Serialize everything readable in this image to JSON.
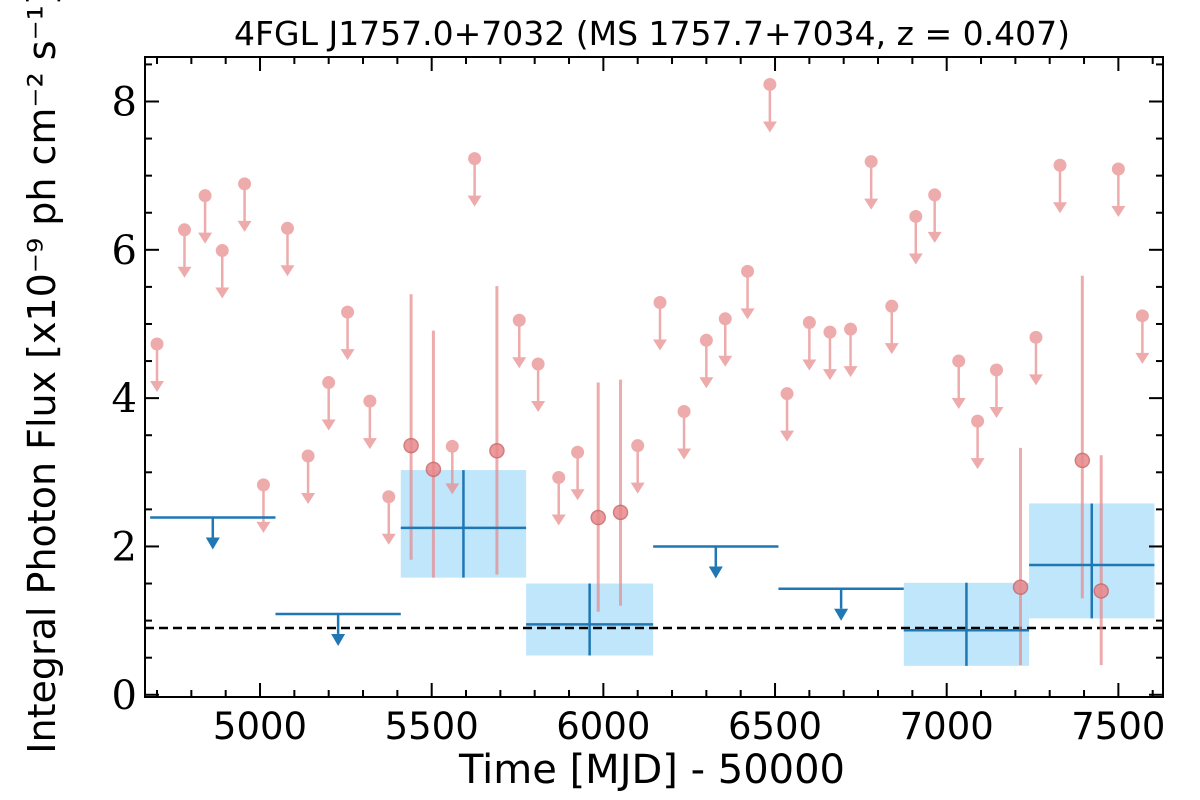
{
  "chart_data": {
    "type": "scatter",
    "title": "4FGL J1757.0+7032 (MS 1757.7+7034, z = 0.407)",
    "xlabel": "Time [MJD] - 50000",
    "ylabel": "Integral Photon Flux [x10⁻⁹ ph cm⁻² s⁻¹]",
    "xlim": [
      4665,
      7630
    ],
    "ylim": [
      -0.03,
      8.6
    ],
    "xticks": [
      5000,
      5500,
      6000,
      6500,
      7000,
      7500
    ],
    "xtick_labels": [
      "5000",
      "5500",
      "6000",
      "6500",
      "7000",
      "7500"
    ],
    "yticks": [
      0,
      2,
      4,
      6,
      8
    ],
    "ytick_labels": [
      "0",
      "2",
      "4",
      "6",
      "8"
    ],
    "reference_line_y": 0.9,
    "colors": {
      "monthly": "#e8888a",
      "binned": "#1f77b4",
      "band": "#bfe6fb",
      "reference": "#000000"
    },
    "series": [
      {
        "kind": "upper_limits",
        "points": [
          {
            "x": 4700,
            "y": 4.73
          },
          {
            "x": 4780,
            "y": 6.27
          },
          {
            "x": 4840,
            "y": 6.73
          },
          {
            "x": 4890,
            "y": 5.99
          },
          {
            "x": 4955,
            "y": 6.89
          },
          {
            "x": 5010,
            "y": 2.83
          },
          {
            "x": 5080,
            "y": 6.29
          },
          {
            "x": 5140,
            "y": 3.22
          },
          {
            "x": 5200,
            "y": 4.21
          },
          {
            "x": 5255,
            "y": 5.16
          },
          {
            "x": 5320,
            "y": 3.96
          },
          {
            "x": 5375,
            "y": 2.67
          },
          {
            "x": 5560,
            "y": 3.35
          },
          {
            "x": 5625,
            "y": 7.23
          },
          {
            "x": 5755,
            "y": 5.05
          },
          {
            "x": 5810,
            "y": 4.46
          },
          {
            "x": 5870,
            "y": 2.93
          },
          {
            "x": 5925,
            "y": 3.27
          },
          {
            "x": 6100,
            "y": 3.36
          },
          {
            "x": 6165,
            "y": 5.29
          },
          {
            "x": 6235,
            "y": 3.82
          },
          {
            "x": 6300,
            "y": 4.78
          },
          {
            "x": 6355,
            "y": 5.07
          },
          {
            "x": 6420,
            "y": 5.71
          },
          {
            "x": 6485,
            "y": 8.23
          },
          {
            "x": 6535,
            "y": 4.06
          },
          {
            "x": 6600,
            "y": 5.02
          },
          {
            "x": 6660,
            "y": 4.89
          },
          {
            "x": 6720,
            "y": 4.93
          },
          {
            "x": 6780,
            "y": 7.19
          },
          {
            "x": 6840,
            "y": 5.24
          },
          {
            "x": 6910,
            "y": 6.45
          },
          {
            "x": 6965,
            "y": 6.74
          },
          {
            "x": 7035,
            "y": 4.5
          },
          {
            "x": 7090,
            "y": 3.69
          },
          {
            "x": 7145,
            "y": 4.38
          },
          {
            "x": 7260,
            "y": 4.82
          },
          {
            "x": 7330,
            "y": 7.14
          },
          {
            "x": 7500,
            "y": 7.09
          },
          {
            "x": 7570,
            "y": 5.11
          }
        ]
      },
      {
        "kind": "detections",
        "points": [
          {
            "x": 5440,
            "y": 3.36,
            "ylow": 1.82,
            "yhigh": 5.4
          },
          {
            "x": 5505,
            "y": 3.04,
            "ylow": 1.58,
            "yhigh": 4.91
          },
          {
            "x": 5690,
            "y": 3.29,
            "ylow": 1.62,
            "yhigh": 5.51
          },
          {
            "x": 5985,
            "y": 2.39,
            "ylow": 1.12,
            "yhigh": 4.21
          },
          {
            "x": 6050,
            "y": 2.46,
            "ylow": 1.2,
            "yhigh": 4.25
          },
          {
            "x": 7215,
            "y": 1.45,
            "ylow": 0.4,
            "yhigh": 3.33
          },
          {
            "x": 7395,
            "y": 3.16,
            "ylow": 1.3,
            "yhigh": 5.65
          },
          {
            "x": 7450,
            "y": 1.4,
            "ylow": 0.4,
            "yhigh": 3.23
          }
        ]
      },
      {
        "kind": "binned_detections",
        "points": [
          {
            "x0": 5410,
            "x1": 5775,
            "y": 2.25,
            "ylow": 1.58,
            "yhigh": 3.03
          },
          {
            "x0": 5775,
            "x1": 6145,
            "y": 0.95,
            "ylow": 0.53,
            "yhigh": 1.5
          },
          {
            "x0": 6875,
            "x1": 7240,
            "y": 0.87,
            "ylow": 0.39,
            "yhigh": 1.51
          },
          {
            "x0": 7240,
            "x1": 7605,
            "y": 1.75,
            "ylow": 1.03,
            "yhigh": 2.58
          }
        ]
      },
      {
        "kind": "binned_upper_limits",
        "points": [
          {
            "x0": 4680,
            "x1": 5045,
            "y": 2.39
          },
          {
            "x0": 5045,
            "x1": 5410,
            "y": 1.09
          },
          {
            "x0": 6145,
            "x1": 6510,
            "y": 2.0
          },
          {
            "x0": 6510,
            "x1": 6875,
            "y": 1.43
          }
        ]
      }
    ]
  }
}
